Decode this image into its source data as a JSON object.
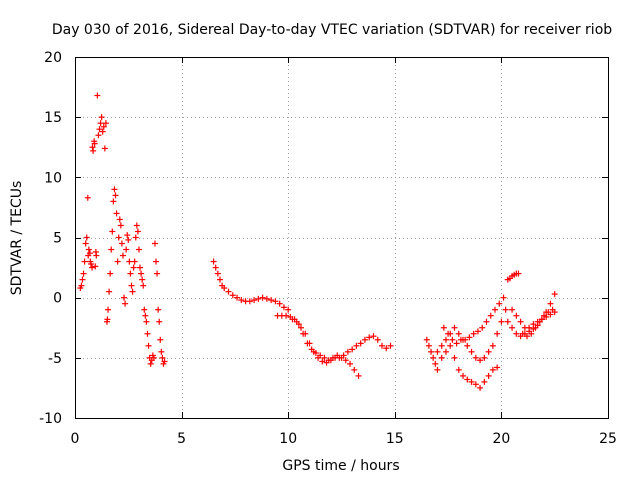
{
  "chart_data": {
    "type": "scatter",
    "title": "Day 030 of 2016, Sidereal Day-to-day VTEC variation (SDTVAR) for receiver riob",
    "xlabel": "GPS time / hours",
    "ylabel": "SDTVAR / TECUs",
    "xlim": [
      0,
      25
    ],
    "ylim": [
      -10,
      20
    ],
    "xticks": [
      0,
      5,
      10,
      15,
      20,
      25
    ],
    "yticks": [
      -10,
      -5,
      0,
      5,
      10,
      15,
      20
    ],
    "grid": true,
    "marker": "plus",
    "color": "#ff0000",
    "series": [
      {
        "name": "SDTVAR",
        "x": [
          0.25,
          0.3,
          0.35,
          0.4,
          0.45,
          0.5,
          0.55,
          0.6,
          0.62,
          0.65,
          0.7,
          0.72,
          0.75,
          0.8,
          0.82,
          0.85,
          0.9,
          0.92,
          0.95,
          0.98,
          1.0,
          1.05,
          1.1,
          1.15,
          1.2,
          1.25,
          1.3,
          1.35,
          1.4,
          1.45,
          1.5,
          1.52,
          1.55,
          1.6,
          1.65,
          1.7,
          1.75,
          1.8,
          1.85,
          1.9,
          1.95,
          2.0,
          2.05,
          2.1,
          2.15,
          2.2,
          2.25,
          2.3,
          2.35,
          2.4,
          2.45,
          2.5,
          2.55,
          2.6,
          2.65,
          2.7,
          2.75,
          2.8,
          2.85,
          2.9,
          2.95,
          3.0,
          3.05,
          3.1,
          3.15,
          3.2,
          3.25,
          3.3,
          3.35,
          3.4,
          3.45,
          3.5,
          3.55,
          3.6,
          3.65,
          3.7,
          3.75,
          3.8,
          3.85,
          3.9,
          3.95,
          4.0,
          4.05,
          4.1,
          4.15,
          4.2,
          6.5,
          6.6,
          6.7,
          6.8,
          6.9,
          7.0,
          7.2,
          7.4,
          7.6,
          7.8,
          8.0,
          8.2,
          8.4,
          8.6,
          8.8,
          9.0,
          9.2,
          9.4,
          9.6,
          9.8,
          10.0,
          9.5,
          9.7,
          9.9,
          10.1,
          10.3,
          10.5,
          10.7,
          10.9,
          11.1,
          11.3,
          11.5,
          11.7,
          11.9,
          12.1,
          12.3,
          12.5,
          12.7,
          12.9,
          13.1,
          13.3,
          10.2,
          10.4,
          10.6,
          10.8,
          11.0,
          11.2,
          11.4,
          11.6,
          11.8,
          12.0,
          12.2,
          12.4,
          12.6,
          12.8,
          13.0,
          13.2,
          13.4,
          13.6,
          13.8,
          14.0,
          14.2,
          14.4,
          14.6,
          14.8,
          16.5,
          16.6,
          16.7,
          16.8,
          16.9,
          17.0,
          17.2,
          17.4,
          17.6,
          17.8,
          18.0,
          18.2,
          18.4,
          18.6,
          18.8,
          19.0,
          19.2,
          19.4,
          19.6,
          19.8,
          17.0,
          17.2,
          17.4,
          17.6,
          17.8,
          18.0,
          18.2,
          18.4,
          18.6,
          18.8,
          19.0,
          19.2,
          19.4,
          19.6,
          19.8,
          20.0,
          20.2,
          17.3,
          17.5,
          17.7,
          17.9,
          18.1,
          18.3,
          18.5,
          18.7,
          18.9,
          19.1,
          19.3,
          19.5,
          19.7,
          19.9,
          20.1,
          20.3,
          20.5,
          20.7,
          20.9,
          21.1,
          21.3,
          21.5,
          21.7,
          21.9,
          22.1,
          22.3,
          22.5,
          20.3,
          20.4,
          20.5,
          20.6,
          20.7,
          20.8,
          20.5,
          20.7,
          20.9,
          21.1,
          21.3,
          21.5,
          21.7,
          21.9,
          22.1,
          22.3,
          22.5,
          21.0,
          21.2,
          21.4,
          21.6,
          21.8,
          22.0,
          22.2,
          22.4
        ],
        "y": [
          0.8,
          1.0,
          1.5,
          2.0,
          3.0,
          4.5,
          5.0,
          8.3,
          3.5,
          4.0,
          3.7,
          3.0,
          2.8,
          2.5,
          12.5,
          12.2,
          13.0,
          12.8,
          2.6,
          3.8,
          3.5,
          16.8,
          13.5,
          14.0,
          14.5,
          15.0,
          13.8,
          14.2,
          12.4,
          14.5,
          -2.0,
          -1.8,
          -1.0,
          0.5,
          2.0,
          4.0,
          5.5,
          8.0,
          9.0,
          8.5,
          7.0,
          3.0,
          5.0,
          6.5,
          6.0,
          4.5,
          3.5,
          0.0,
          -0.5,
          4.0,
          5.2,
          4.8,
          3.0,
          2.0,
          1.0,
          0.5,
          2.5,
          3.0,
          5.0,
          6.0,
          5.5,
          4.0,
          2.5,
          2.0,
          1.5,
          1.0,
          -1.0,
          -1.5,
          -2.0,
          -3.0,
          -4.0,
          -5.0,
          -5.5,
          -5.2,
          -4.8,
          -5.0,
          4.5,
          3.0,
          2.0,
          -1.0,
          -2.0,
          -3.5,
          -4.5,
          -5.0,
          -5.5,
          -5.3,
          3.0,
          2.5,
          2.0,
          1.5,
          1.0,
          0.8,
          0.5,
          0.2,
          0.0,
          -0.2,
          -0.3,
          -0.3,
          -0.2,
          -0.1,
          0.0,
          -0.1,
          -0.2,
          -0.3,
          -0.5,
          -0.8,
          -1.0,
          -1.5,
          -1.5,
          -1.5,
          -1.6,
          -1.8,
          -2.2,
          -3.0,
          -3.8,
          -4.3,
          -4.6,
          -4.8,
          -5.0,
          -5.2,
          -5.0,
          -4.8,
          -5.0,
          -5.2,
          -5.5,
          -6.0,
          -6.5,
          -1.8,
          -2.0,
          -2.5,
          -3.0,
          -3.8,
          -4.5,
          -5.0,
          -5.3,
          -5.4,
          -5.2,
          -5.0,
          -5.0,
          -4.8,
          -4.5,
          -4.3,
          -4.0,
          -3.8,
          -3.5,
          -3.3,
          -3.2,
          -3.5,
          -4.0,
          -4.2,
          -4.0,
          -3.5,
          -4.0,
          -4.5,
          -5.0,
          -5.5,
          -6.0,
          -5.0,
          -4.5,
          -4.0,
          -5.0,
          -6.0,
          -6.5,
          -6.8,
          -7.0,
          -7.2,
          -7.5,
          -7.0,
          -6.5,
          -6.0,
          -5.8,
          -4.5,
          -4.0,
          -3.5,
          -3.0,
          -2.5,
          -3.0,
          -3.5,
          -4.0,
          -4.5,
          -5.0,
          -5.2,
          -5.0,
          -4.5,
          -4.0,
          -3.0,
          -2.0,
          -1.0,
          -2.5,
          -3.0,
          -3.5,
          -3.8,
          -3.5,
          -3.5,
          -3.3,
          -3.0,
          -2.8,
          -2.5,
          -2.0,
          -1.5,
          -1.0,
          -0.5,
          0.0,
          -2.0,
          -2.5,
          -3.0,
          -3.2,
          -3.0,
          -2.5,
          -2.2,
          -2.0,
          -1.8,
          -1.6,
          -1.4,
          -1.2,
          1.5,
          1.6,
          1.8,
          1.9,
          2.0,
          2.0,
          -1.0,
          -1.5,
          -2.0,
          -2.5,
          -2.8,
          -2.6,
          -2.3,
          -1.8,
          -1.2,
          -0.5,
          0.3,
          -3.0,
          -3.2,
          -3.0,
          -2.5,
          -2.0,
          -1.5,
          -1.2,
          -1.0
        ]
      }
    ]
  }
}
